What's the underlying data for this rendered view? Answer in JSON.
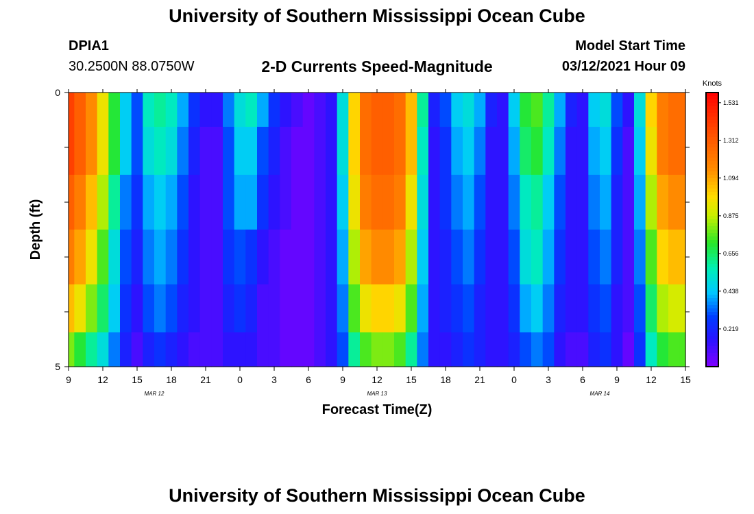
{
  "header": {
    "title": "University of Southern Mississippi Ocean Cube",
    "station_id": "DPIA1",
    "station_coords": "30.2500N 88.0750W",
    "model_start_label": "Model Start Time",
    "model_start_value": "03/12/2021 Hour 09"
  },
  "footer": {
    "title": "University of Southern Mississippi Ocean Cube"
  },
  "chart_data": {
    "type": "heatmap",
    "title": "2-D Currents Speed-Magnitude",
    "xlabel": "Forecast Time(Z)",
    "ylabel": "Depth (ft)",
    "x_tick_labels": [
      "9",
      "12",
      "15",
      "18",
      "21",
      "0",
      "3",
      "6",
      "9",
      "12",
      "15",
      "18",
      "21",
      "0",
      "3",
      "6",
      "9",
      "12",
      "15"
    ],
    "x_tick_hours": [
      0,
      3,
      6,
      9,
      12,
      15,
      18,
      21,
      24,
      27,
      30,
      33,
      36,
      39,
      42,
      45,
      48,
      51,
      54
    ],
    "date_labels": [
      {
        "label": "MAR 12",
        "hour": 7.5
      },
      {
        "label": "MAR 13",
        "hour": 27
      },
      {
        "label": "MAR 14",
        "hour": 46.5
      }
    ],
    "y_tick_labels": [
      "0",
      "5"
    ],
    "ylim": [
      0,
      5
    ],
    "xlim": [
      0,
      54
    ],
    "colorbar": {
      "title": "Knots",
      "tick_labels": [
        "1.531",
        "1.312",
        "1.094",
        "0.875",
        "0.656",
        "0.438",
        "0.219"
      ],
      "tick_values": [
        1.531,
        1.312,
        1.094,
        0.875,
        0.656,
        0.438,
        0.219
      ],
      "range": [
        0,
        1.59
      ]
    },
    "x_hours": [
      0,
      1,
      2,
      3,
      4,
      5,
      6,
      7,
      8,
      9,
      10,
      11,
      12,
      13,
      14,
      15,
      16,
      17,
      18,
      19,
      20,
      21,
      22,
      23,
      24,
      25,
      26,
      27,
      28,
      29,
      30,
      31,
      32,
      33,
      34,
      35,
      36,
      37,
      38,
      39,
      40,
      41,
      42,
      43,
      44,
      45,
      46,
      47,
      48,
      49,
      50,
      51,
      52,
      53,
      54
    ],
    "depth_levels": [
      0.25,
      1.0,
      2.0,
      3.0,
      4.0,
      4.75
    ],
    "values": [
      [
        1.4,
        1.3,
        1.15,
        0.95,
        0.7,
        0.45,
        0.3,
        0.55,
        0.6,
        0.55,
        0.4,
        0.25,
        0.15,
        0.15,
        0.35,
        0.5,
        0.55,
        0.4,
        0.25,
        0.15,
        0.1,
        0.05,
        0.1,
        0.15,
        0.5,
        1.0,
        1.25,
        1.3,
        1.3,
        1.25,
        1.05,
        0.6,
        0.2,
        0.3,
        0.45,
        0.5,
        0.4,
        0.2,
        0.15,
        0.45,
        0.7,
        0.75,
        0.6,
        0.4,
        0.2,
        0.15,
        0.45,
        0.5,
        0.3,
        0.15,
        0.5,
        1.0,
        1.2,
        1.25,
        1.25
      ],
      [
        1.4,
        1.3,
        1.15,
        0.95,
        0.7,
        0.45,
        0.3,
        0.5,
        0.55,
        0.5,
        0.35,
        0.2,
        0.1,
        0.1,
        0.3,
        0.45,
        0.45,
        0.3,
        0.2,
        0.1,
        0.05,
        0.05,
        0.1,
        0.15,
        0.5,
        1.0,
        1.25,
        1.3,
        1.3,
        1.25,
        1.05,
        0.55,
        0.15,
        0.25,
        0.4,
        0.45,
        0.35,
        0.15,
        0.15,
        0.4,
        0.65,
        0.7,
        0.55,
        0.35,
        0.15,
        0.15,
        0.4,
        0.45,
        0.25,
        0.1,
        0.45,
        0.95,
        1.2,
        1.25,
        1.25
      ],
      [
        1.3,
        1.2,
        1.05,
        0.85,
        0.6,
        0.35,
        0.25,
        0.4,
        0.45,
        0.4,
        0.3,
        0.15,
        0.1,
        0.1,
        0.3,
        0.4,
        0.4,
        0.25,
        0.15,
        0.1,
        0.05,
        0.05,
        0.1,
        0.15,
        0.45,
        0.95,
        1.2,
        1.25,
        1.25,
        1.2,
        0.95,
        0.5,
        0.15,
        0.25,
        0.35,
        0.4,
        0.3,
        0.15,
        0.15,
        0.35,
        0.55,
        0.6,
        0.45,
        0.3,
        0.15,
        0.15,
        0.35,
        0.4,
        0.2,
        0.1,
        0.4,
        0.85,
        1.1,
        1.15,
        1.15
      ],
      [
        1.2,
        1.1,
        0.95,
        0.75,
        0.5,
        0.3,
        0.2,
        0.35,
        0.4,
        0.35,
        0.25,
        0.15,
        0.1,
        0.1,
        0.25,
        0.3,
        0.25,
        0.15,
        0.1,
        0.05,
        0.05,
        0.05,
        0.1,
        0.15,
        0.4,
        0.85,
        1.1,
        1.15,
        1.15,
        1.1,
        0.85,
        0.45,
        0.15,
        0.2,
        0.3,
        0.35,
        0.25,
        0.15,
        0.15,
        0.3,
        0.5,
        0.55,
        0.4,
        0.25,
        0.15,
        0.15,
        0.3,
        0.35,
        0.2,
        0.1,
        0.35,
        0.75,
        1.0,
        1.05,
        1.05
      ],
      [
        1.05,
        0.95,
        0.8,
        0.65,
        0.45,
        0.25,
        0.15,
        0.3,
        0.35,
        0.3,
        0.2,
        0.15,
        0.1,
        0.1,
        0.2,
        0.25,
        0.2,
        0.1,
        0.1,
        0.05,
        0.05,
        0.05,
        0.1,
        0.15,
        0.35,
        0.75,
        0.95,
        1.0,
        1.0,
        0.95,
        0.75,
        0.4,
        0.15,
        0.2,
        0.25,
        0.3,
        0.2,
        0.15,
        0.15,
        0.25,
        0.4,
        0.45,
        0.35,
        0.2,
        0.15,
        0.15,
        0.25,
        0.3,
        0.15,
        0.1,
        0.3,
        0.65,
        0.85,
        0.9,
        0.9
      ],
      [
        0.8,
        0.7,
        0.6,
        0.5,
        0.35,
        0.2,
        0.1,
        0.2,
        0.25,
        0.2,
        0.15,
        0.1,
        0.1,
        0.1,
        0.15,
        0.15,
        0.15,
        0.1,
        0.1,
        0.05,
        0.05,
        0.05,
        0.1,
        0.15,
        0.3,
        0.6,
        0.75,
        0.8,
        0.8,
        0.75,
        0.6,
        0.35,
        0.15,
        0.15,
        0.2,
        0.25,
        0.2,
        0.15,
        0.15,
        0.2,
        0.3,
        0.35,
        0.3,
        0.15,
        0.1,
        0.1,
        0.2,
        0.25,
        0.15,
        0.05,
        0.25,
        0.55,
        0.7,
        0.75,
        0.75
      ]
    ],
    "grid": false
  }
}
